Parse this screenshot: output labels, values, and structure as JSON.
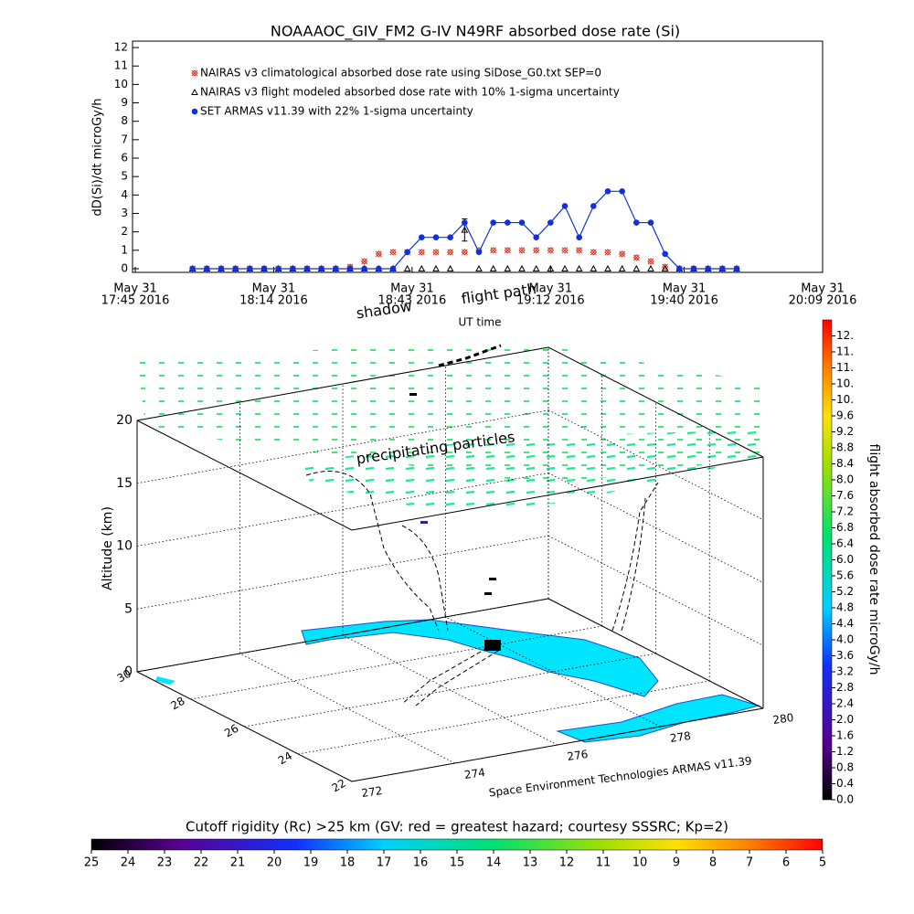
{
  "chart_data": [
    {
      "type": "line",
      "title": "NOAAAOC_GIV_FM2 G-IV    N49RF  absorbed dose rate (Si)",
      "ylabel": "dD(Si)/dt microGy/h",
      "xlabel": "UT time",
      "x": [
        "17:57",
        "18:00",
        "18:03",
        "18:06",
        "18:09",
        "18:12",
        "18:15",
        "18:18",
        "18:21",
        "18:24",
        "18:27",
        "18:30",
        "18:33",
        "18:36",
        "18:39",
        "18:42",
        "18:45",
        "18:48",
        "18:51",
        "18:54",
        "18:57",
        "19:00",
        "19:03",
        "19:06",
        "19:09",
        "19:12",
        "19:15",
        "19:18",
        "19:21",
        "19:24",
        "19:27",
        "19:30",
        "19:33",
        "19:36",
        "19:39",
        "19:42",
        "19:45",
        "19:48",
        "19:51"
      ],
      "xlim": [
        "17:45",
        "20:09"
      ],
      "xticks": [
        {
          "value": "17:45",
          "label": [
            "May 31",
            "17:45 2016"
          ]
        },
        {
          "value": "18:14",
          "label": [
            "May 31",
            "18:14 2016"
          ]
        },
        {
          "value": "18:43",
          "label": [
            "May 31",
            "18:43 2016"
          ]
        },
        {
          "value": "19:12",
          "label": [
            "May 31",
            "19:12 2016"
          ]
        },
        {
          "value": "19:40",
          "label": [
            "May 31",
            "19:40 2016"
          ]
        },
        {
          "value": "20:09",
          "label": [
            "May 31",
            "20:09 2016"
          ]
        }
      ],
      "ylim": [
        -0.2,
        12.35
      ],
      "yticks": [
        0,
        1,
        2,
        3,
        4,
        5,
        6,
        7,
        8,
        9,
        10,
        11,
        12
      ],
      "series": [
        {
          "name": "NAIRAS v3 climatological absorbed dose rate using SiDose_G0.txt SEP=0",
          "color": "#e0301e",
          "marker": "diamond",
          "values": [
            0,
            0,
            0,
            0,
            0,
            0,
            0,
            0,
            0,
            0,
            0,
            0.1,
            0.4,
            0.8,
            0.9,
            0.9,
            0.9,
            0.9,
            0.9,
            0.9,
            1.0,
            1.0,
            1.0,
            1.0,
            1.0,
            1.0,
            1.0,
            1.0,
            0.9,
            0.9,
            0.8,
            0.6,
            0.4,
            0.1,
            0,
            0,
            0,
            0,
            0
          ]
        },
        {
          "name": "NAIRAS v3 flight modeled absorbed dose rate with 10% 1-sigma uncertainty",
          "color": "#000000",
          "marker": "triangle",
          "values": [
            0,
            0,
            0,
            0,
            0,
            0,
            0,
            0,
            0,
            0,
            0,
            0,
            0,
            0,
            0,
            0,
            0,
            0,
            0,
            2.1,
            0,
            0,
            0,
            0,
            0,
            0,
            0,
            0,
            0,
            0,
            0,
            0,
            0,
            0,
            0,
            0,
            0,
            0,
            0
          ],
          "errors": [
            null,
            null,
            null,
            null,
            null,
            null,
            null,
            null,
            null,
            null,
            null,
            null,
            null,
            null,
            null,
            null,
            null,
            null,
            null,
            0.6,
            null,
            null,
            null,
            null,
            null,
            null,
            null,
            null,
            null,
            null,
            null,
            null,
            null,
            null,
            null,
            null,
            null,
            null,
            null
          ]
        },
        {
          "name": "SET ARMAS v11.39 with 22% 1-sigma uncertainty",
          "color": "#1030e0",
          "marker": "circle",
          "values": [
            0,
            0,
            0,
            0,
            0,
            0,
            0,
            0,
            0,
            0,
            0,
            0,
            0,
            0,
            0,
            0.9,
            1.7,
            1.7,
            1.7,
            2.5,
            0.9,
            2.5,
            2.5,
            2.5,
            1.7,
            2.5,
            3.4,
            1.7,
            3.4,
            4.2,
            4.2,
            2.5,
            2.5,
            0.8,
            0,
            0,
            0,
            0,
            0
          ]
        }
      ]
    },
    {
      "type": "box3d",
      "annotations": [
        "shadow",
        "flight path",
        "precipitating particles"
      ],
      "zlabel": "Altitude (km)",
      "zlim": [
        0,
        20
      ],
      "zticks": [
        0,
        5,
        10,
        15,
        20
      ],
      "ylim": [
        22,
        30
      ],
      "yticks": [
        22,
        24,
        26,
        28,
        30
      ],
      "xlim": [
        272,
        280
      ],
      "xticks": [
        272,
        274,
        276,
        278,
        280
      ],
      "credit": "Space Environment Technologies ARMAS v11.39"
    },
    {
      "type": "colorbar",
      "orientation": "vertical",
      "label": "flight absorbed dose rate microGy/h",
      "lim": [
        0,
        12
      ],
      "ticks": [
        {
          "value": 0,
          "label": "0.0"
        },
        0.4,
        0.8,
        1.2,
        1.6,
        {
          "value": 2,
          "label": "2.0"
        },
        2.4,
        2.8,
        3.2,
        3.6,
        {
          "value": 4,
          "label": "4.0"
        },
        4.4,
        4.8,
        5.2,
        5.6,
        {
          "value": 6,
          "label": "6.0"
        },
        6.4,
        6.8,
        7.2,
        7.6,
        {
          "value": 8,
          "label": "8.0"
        },
        8.4,
        8.8,
        9.2,
        9.6,
        {
          "value": 10,
          "label": "10."
        },
        {
          "value": 10.4,
          "label": "10."
        },
        {
          "value": 10.8,
          "label": "11."
        },
        {
          "value": 11.2,
          "label": "11."
        },
        {
          "value": 11.6,
          "label": "12."
        }
      ]
    },
    {
      "type": "colorbar",
      "orientation": "horizontal",
      "label": "Cutoff rigidity (Rc) >25 km (GV: red = greatest hazard; courtesy SSSRC; Kp=2)",
      "lim": [
        25,
        5
      ],
      "ticks": [
        25,
        24,
        23,
        22,
        21,
        20,
        19,
        18,
        17,
        16,
        15,
        14,
        13,
        12,
        11,
        10,
        9,
        8,
        7,
        6,
        5
      ]
    }
  ]
}
